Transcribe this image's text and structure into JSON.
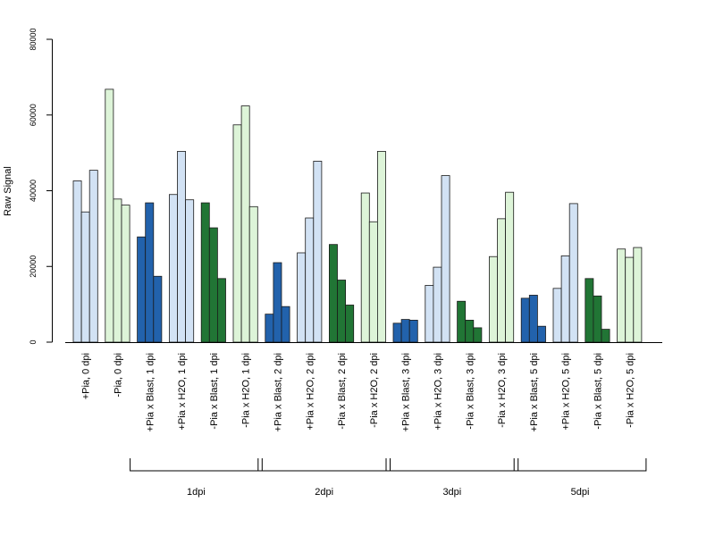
{
  "chart_data": {
    "type": "bar",
    "ylabel": "Raw Signal",
    "ylim": [
      0,
      80000
    ],
    "yticks": [
      0,
      20000,
      40000,
      60000,
      80000
    ],
    "ytick_labels": [
      "0",
      "20000",
      "40000",
      "60000",
      "80000"
    ],
    "grid": false,
    "categories": [
      "+Pia, 0 dpi",
      "-Pia, 0 dpi",
      "+Pia x Blast, 1 dpi",
      "+Pia x H2O, 1 dpi",
      "-Pia x Blast, 1 dpi",
      "-Pia x H2O, 1 dpi",
      "+Pia x Blast, 2 dpi",
      "+Pia x H2O, 2 dpi",
      "-Pia x Blast, 2 dpi",
      "-Pia x H2O, 2 dpi",
      "+Pia x Blast, 3 dpi",
      "+Pia x H2O, 3 dpi",
      "-Pia x Blast, 3 dpi",
      "-Pia x H2O, 3 dpi",
      "+Pia x Blast, 5 dpi",
      "+Pia x H2O, 5 dpi",
      "-Pia x Blast, 5 dpi",
      "-Pia x H2O, 5 dpi"
    ],
    "replicates": [
      [
        42600,
        34400,
        45400
      ],
      [
        66800,
        37800,
        36200
      ],
      [
        27800,
        36800,
        17400
      ],
      [
        39000,
        50400,
        37600
      ],
      [
        36800,
        30200,
        16800
      ],
      [
        57400,
        62400,
        35800
      ],
      [
        7400,
        21000,
        9400
      ],
      [
        23600,
        32800,
        47800
      ],
      [
        25800,
        16400,
        9800
      ],
      [
        39400,
        31800,
        50400
      ],
      [
        5000,
        6000,
        5800
      ],
      [
        15000,
        19800,
        44000
      ],
      [
        10800,
        5800,
        3800
      ],
      [
        22600,
        32600,
        39600
      ],
      [
        11600,
        12400,
        4200
      ],
      [
        14200,
        22800,
        36600
      ],
      [
        16800,
        12200,
        3400
      ],
      [
        24600,
        22400,
        25000
      ]
    ],
    "colors": {
      "plus_pia_h2o": "#d2e2f4",
      "minus_pia_h2o": "#ddf4d8",
      "plus_pia_blast": "#2262ac",
      "minus_pia_blast": "#217535"
    },
    "bar_colors": [
      "#d2e2f4",
      "#ddf4d8",
      "#2262ac",
      "#d2e2f4",
      "#217535",
      "#ddf4d8",
      "#2262ac",
      "#d2e2f4",
      "#217535",
      "#ddf4d8",
      "#2262ac",
      "#d2e2f4",
      "#217535",
      "#ddf4d8",
      "#2262ac",
      "#d2e2f4",
      "#217535",
      "#ddf4d8"
    ],
    "groups": [
      {
        "label": "1dpi",
        "start": 2,
        "end": 5
      },
      {
        "label": "2dpi",
        "start": 6,
        "end": 9
      },
      {
        "label": "3dpi",
        "start": 10,
        "end": 13
      },
      {
        "label": "5dpi",
        "start": 14,
        "end": 17
      }
    ]
  }
}
